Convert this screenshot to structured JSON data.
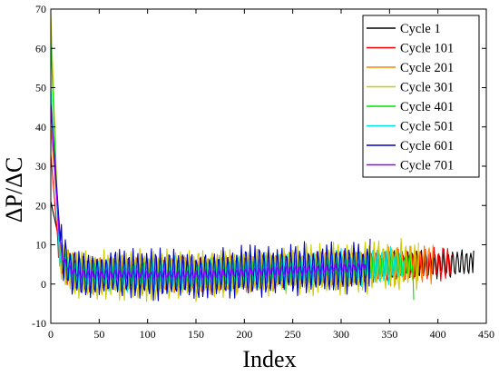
{
  "chart_data": {
    "type": "line",
    "title": "",
    "xlabel": "Index",
    "ylabel": "ΔP/ΔC",
    "xlim": [
      0,
      450
    ],
    "ylim": [
      -10,
      70
    ],
    "xticks": [
      "0",
      "50",
      "100",
      "150",
      "200",
      "250",
      "300",
      "350",
      "400",
      "450"
    ],
    "yticks": [
      "-10",
      "0",
      "10",
      "20",
      "30",
      "40",
      "50",
      "60",
      "70"
    ],
    "grid": false,
    "legend_position": "top-right",
    "series": [
      {
        "name": "Cycle 1",
        "color": "#000000",
        "length": 437,
        "start": 21,
        "peak_index": 8,
        "peak_value": 12,
        "amplitude": 3.0,
        "tail_spike": 8.5
      },
      {
        "name": "Cycle 101",
        "color": "#ff0000",
        "length": 415,
        "start": 33,
        "peak_index": 7,
        "peak_value": 12,
        "amplitude": 3.5,
        "tail_spike": 7.5
      },
      {
        "name": "Cycle 201",
        "color": "#ff8000",
        "length": 395,
        "start": 40,
        "peak_index": 9,
        "peak_value": 12,
        "amplitude": 4.0,
        "tail_spike": 10
      },
      {
        "name": "Cycle 301",
        "color": "#cccc00",
        "length": 380,
        "start": 69,
        "peak_index": 8,
        "peak_value": 12,
        "amplitude": 5.5,
        "tail_spike": 10.5
      },
      {
        "name": "Cycle 401",
        "color": "#00e000",
        "length": 375,
        "start": 62,
        "peak_index": 8,
        "peak_value": 12,
        "amplitude": 2.5,
        "tail_spike": -4
      },
      {
        "name": "Cycle 501",
        "color": "#00e5e5",
        "length": 365,
        "start": 50,
        "peak_index": 8,
        "peak_value": 12,
        "amplitude": 4.0,
        "tail_spike": 6
      },
      {
        "name": "Cycle 601",
        "color": "#0000cc",
        "length": 330,
        "start": 46,
        "peak_index": 10,
        "peak_value": 11,
        "amplitude": 5.5,
        "tail_spike": 11.5
      },
      {
        "name": "Cycle 701",
        "color": "#9900ff",
        "length": 325,
        "start": 45,
        "peak_index": 9,
        "peak_value": 11,
        "amplitude": 1.2,
        "tail_spike": 5
      }
    ]
  }
}
